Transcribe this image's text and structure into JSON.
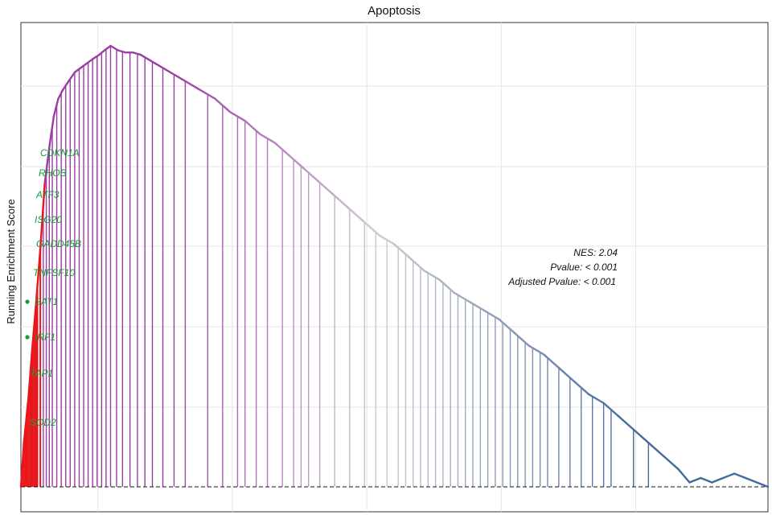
{
  "chart_data": {
    "type": "line",
    "title": "Apoptosis",
    "xlabel": "",
    "ylabel": "Running Enrichment Score",
    "xlim": [
      0,
      100
    ],
    "ylim": [
      0,
      100
    ],
    "grid": true,
    "baseline": 0,
    "colors": {
      "start": "#e8161b",
      "purple": "#9b3ea3",
      "mid": "#cdcdd2",
      "end": "#46699c",
      "gene_label": "#1a9a3a",
      "grid": "#e6e6e6"
    },
    "series": [
      {
        "x": [
          0,
          0.4,
          1.0,
          1.5,
          2.0,
          2.6,
          3.2,
          3.8,
          4.4,
          5.0,
          5.6,
          6.4,
          7.2,
          8.0,
          8.8,
          9.6,
          10.5,
          11.2,
          12.0,
          13.0,
          14.0,
          15.0,
          16.0,
          17.0,
          18.0,
          20.0,
          22.0,
          24.0,
          26.0,
          28.0,
          30.0,
          32.0,
          34.0,
          36.0,
          38.0,
          40.0,
          42.0,
          44.0,
          46.0,
          48.0,
          50.0,
          52.0,
          54.0,
          56.0,
          58.0,
          60.0,
          62.0,
          64.0,
          66.0,
          68.0,
          70.0,
          72.0,
          74.0,
          76.0,
          78.0,
          80.0,
          82.0,
          84.0,
          86.0,
          88.0,
          89.5,
          91.0,
          92.5,
          94.0,
          95.5,
          97.0,
          98.5,
          100.0
        ],
        "y": [
          0,
          10,
          20,
          31,
          41,
          54,
          69,
          77,
          84,
          88,
          90,
          92,
          94,
          95,
          96,
          97,
          98,
          99,
          100,
          99,
          98.5,
          98.5,
          98,
          97,
          96,
          94,
          92,
          90,
          88,
          85,
          83,
          80,
          78,
          75,
          72,
          69,
          66,
          63,
          60,
          57,
          55,
          52,
          49,
          47,
          44,
          42,
          40,
          38,
          35,
          32,
          30,
          27,
          24,
          21,
          19,
          16,
          13,
          10,
          7,
          4,
          1,
          2,
          1,
          2,
          3,
          2,
          1,
          0
        ]
      }
    ],
    "hit_positions": [
      0.2,
      0.4,
      0.6,
      0.8,
      1.0,
      1.2,
      1.4,
      1.6,
      1.8,
      2.0,
      2.2,
      2.6,
      3.0,
      3.4,
      3.8,
      4.2,
      4.8,
      5.4,
      6.0,
      6.6,
      7.2,
      7.8,
      8.4,
      9.0,
      9.6,
      10.2,
      10.8,
      11.4,
      12.0,
      12.8,
      13.6,
      14.6,
      15.6,
      16.6,
      17.6,
      19.0,
      20.5,
      22.0,
      25.0,
      27.0,
      29.0,
      30.0,
      31.5,
      33.0,
      35.0,
      36.5,
      37.5,
      38.5,
      40.0,
      42.0,
      44.0,
      46.0,
      47.5,
      49.0,
      50.5,
      51.5,
      52.5,
      53.5,
      54.5,
      55.5,
      56.5,
      57.5,
      58.5,
      59.5,
      60.5,
      61.5,
      62.5,
      63.5,
      64.5,
      65.5,
      66.5,
      67.5,
      68.5,
      69.5,
      70.5,
      72.0,
      73.5,
      75.0,
      76.5,
      78.0,
      79.0,
      82.0,
      84.0
    ],
    "gene_labels": [
      "CDKN1A",
      "RHOB",
      "ATF3",
      "ISG20",
      "GADD45B",
      "TNFSF10",
      "SAT1",
      "IRF1",
      "TAP1",
      "SOD2"
    ],
    "stats": {
      "nes": "NES: 2.04",
      "pvalue": "Pvalue: < 0.001",
      "adj_pvalue": "Adjusted Pvalue: < 0.001"
    }
  }
}
